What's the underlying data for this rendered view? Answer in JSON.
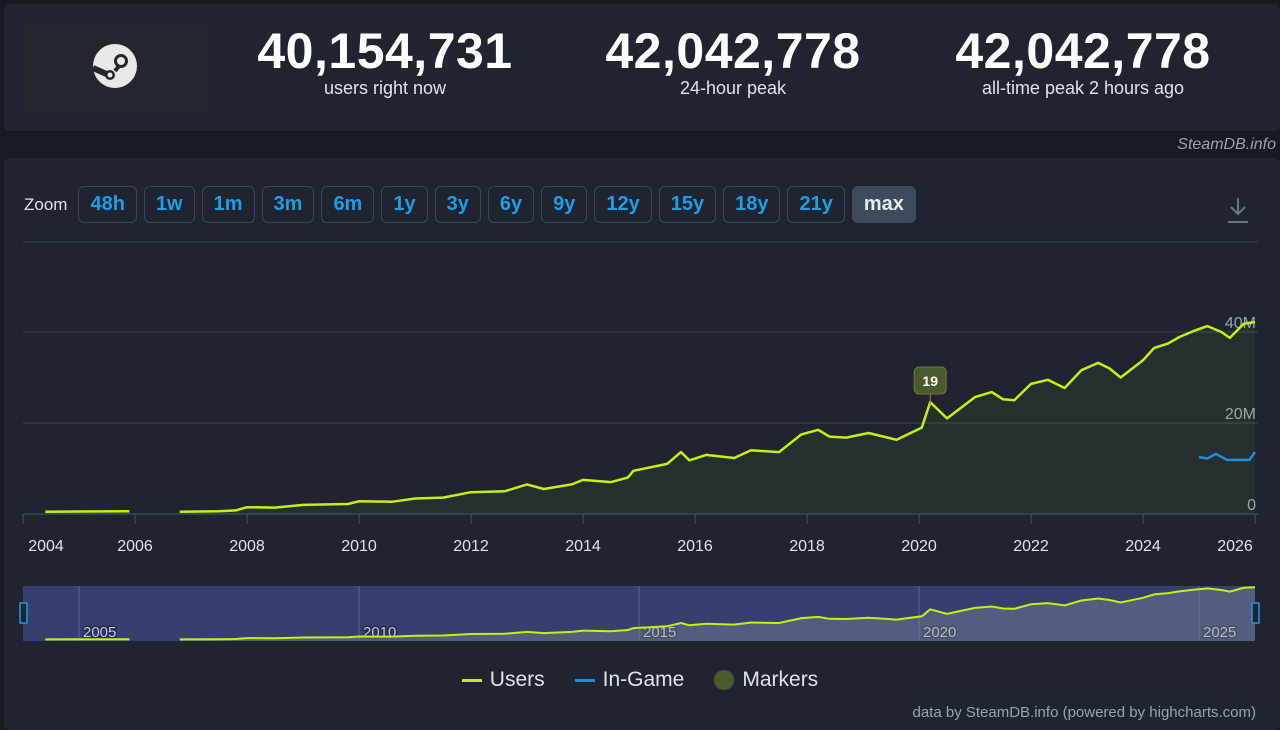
{
  "stats": [
    {
      "value": "40,154,731",
      "label": "users right now"
    },
    {
      "value": "42,042,778",
      "label": "24-hour peak"
    },
    {
      "value": "42,042,778",
      "label": "all-time peak 2 hours ago"
    }
  ],
  "credit": "SteamDB.info",
  "zoom": {
    "label": "Zoom",
    "options": [
      "48h",
      "1w",
      "1m",
      "3m",
      "6m",
      "1y",
      "3y",
      "6y",
      "9y",
      "12y",
      "15y",
      "18y",
      "21y",
      "max"
    ],
    "active": "max"
  },
  "footer": "data by SteamDB.info (powered by highcharts.com)",
  "colors": {
    "users": "#c6f012",
    "in_game": "#1b8fe0",
    "markers": "#4b5a2c"
  },
  "chart_data": {
    "type": "line",
    "xlim": [
      2004,
      2026
    ],
    "ylim": [
      0,
      42
    ],
    "x_ticks": [
      "2004",
      "2006",
      "2008",
      "2010",
      "2012",
      "2014",
      "2016",
      "2018",
      "2020",
      "2022",
      "2024",
      "2026"
    ],
    "y_ticks": [
      "0",
      "20M",
      "40M"
    ],
    "navigator_ticks": [
      "2005",
      "2010",
      "2015",
      "2020",
      "2025"
    ],
    "grid": true,
    "legend_position": "bottom",
    "series": [
      {
        "name": "Users",
        "unit": "millions",
        "points": [
          [
            2004.4,
            0.5
          ],
          [
            2005,
            0.55
          ],
          [
            2005.9,
            0.6
          ],
          null,
          [
            2006.8,
            0.5
          ],
          [
            2007.5,
            0.6
          ],
          [
            2007.8,
            0.8
          ],
          [
            2008,
            1.5
          ],
          [
            2008.5,
            1.4
          ],
          [
            2009,
            2.0
          ],
          [
            2009.8,
            2.2
          ],
          [
            2010,
            2.8
          ],
          [
            2010.6,
            2.7
          ],
          [
            2011,
            3.4
          ],
          [
            2011.5,
            3.6
          ],
          [
            2012,
            4.8
          ],
          [
            2012.6,
            5.0
          ],
          [
            2013,
            6.5
          ],
          [
            2013.3,
            5.5
          ],
          [
            2013.8,
            6.5
          ],
          [
            2014,
            7.5
          ],
          [
            2014.5,
            7.0
          ],
          [
            2014.8,
            8.0
          ],
          [
            2014.9,
            9.5
          ],
          [
            2015.5,
            11.0
          ],
          [
            2015.75,
            13.6
          ],
          [
            2015.9,
            11.8
          ],
          [
            2016.2,
            13.0
          ],
          [
            2016.7,
            12.3
          ],
          [
            2017,
            14.0
          ],
          [
            2017.5,
            13.6
          ],
          [
            2017.9,
            17.5
          ],
          [
            2018.2,
            18.5
          ],
          [
            2018.4,
            17.0
          ],
          [
            2018.7,
            16.8
          ],
          [
            2019.1,
            17.8
          ],
          [
            2019.6,
            16.3
          ],
          [
            2020.05,
            19.0
          ],
          [
            2020.2,
            24.6
          ],
          [
            2020.5,
            21.0
          ],
          [
            2021,
            25.7
          ],
          [
            2021.3,
            26.8
          ],
          [
            2021.5,
            25.2
          ],
          [
            2021.7,
            25.0
          ],
          [
            2022,
            28.6
          ],
          [
            2022.3,
            29.5
          ],
          [
            2022.6,
            27.7
          ],
          [
            2022.9,
            31.6
          ],
          [
            2023.2,
            33.2
          ],
          [
            2023.4,
            32.0
          ],
          [
            2023.6,
            30.0
          ],
          [
            2024,
            33.8
          ],
          [
            2024.2,
            36.5
          ],
          [
            2024.45,
            37.5
          ],
          [
            2024.65,
            38.9
          ],
          [
            2024.9,
            40.2
          ],
          [
            2025.15,
            41.3
          ],
          [
            2025.4,
            40.0
          ],
          [
            2025.55,
            38.7
          ],
          [
            2025.8,
            41.8
          ],
          [
            2026,
            42.2
          ]
        ]
      },
      {
        "name": "In-Game",
        "unit": "millions",
        "points": [
          [
            2025,
            12.5
          ],
          [
            2025.15,
            12.2
          ],
          [
            2025.3,
            13.2
          ],
          [
            2025.5,
            11.9
          ],
          [
            2025.9,
            11.9
          ],
          [
            2026,
            13.6
          ]
        ]
      },
      {
        "name": "Markers",
        "points": [
          {
            "x": 2020.2,
            "label": "19"
          }
        ]
      }
    ]
  }
}
